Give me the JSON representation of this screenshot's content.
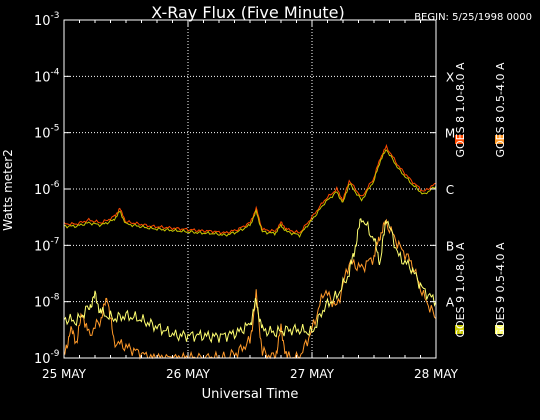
{
  "chart_data": {
    "type": "line",
    "title": "X-Ray Flux (Five Minute)",
    "begin_label": "BEGIN: 5/25/1998 0000",
    "xlabel": "Universal Time",
    "ylabel": "Watts meter2",
    "y_scale": "log",
    "ylim_exponents": [
      -9,
      -3
    ],
    "yticks": [
      {
        "exp": -9,
        "label": "10",
        "sup": "-9"
      },
      {
        "exp": -8,
        "label": "10",
        "sup": "-8"
      },
      {
        "exp": -7,
        "label": "10",
        "sup": "-7"
      },
      {
        "exp": -6,
        "label": "10",
        "sup": "-6"
      },
      {
        "exp": -5,
        "label": "10",
        "sup": "-5"
      },
      {
        "exp": -4,
        "label": "10",
        "sup": "-4"
      },
      {
        "exp": -3,
        "label": "10",
        "sup": "-3"
      }
    ],
    "xlim_days": [
      25,
      28
    ],
    "xticks": [
      {
        "day": 25,
        "label": "25 MAY"
      },
      {
        "day": 26,
        "label": "26 MAY"
      },
      {
        "day": 27,
        "label": "27 MAY"
      },
      {
        "day": 28,
        "label": "28 MAY"
      }
    ],
    "flare_classes": [
      {
        "label": "A",
        "exp": -8
      },
      {
        "label": "B",
        "exp": -7
      },
      {
        "label": "C",
        "exp": -6
      },
      {
        "label": "M",
        "exp": -5
      },
      {
        "label": "X",
        "exp": -4
      }
    ],
    "grid": true,
    "legend": [
      {
        "name": "GOES 8 1.0-8.0 A",
        "color": "#ff4a00"
      },
      {
        "name": "GOES 8 0.5-4.0 A",
        "color": "#ff9a2a"
      },
      {
        "name": "GOES 9 1.0-8.0 A",
        "color": "#c8c800"
      },
      {
        "name": "GOES 9 0.5-4.0 A",
        "color": "#ffff70"
      }
    ],
    "series": [
      {
        "name": "GOES 8 1.0-8.0 A",
        "color": "#ff4a00",
        "x": [
          25.0,
          25.1,
          25.2,
          25.3,
          25.4,
          25.45,
          25.5,
          25.6,
          25.7,
          25.8,
          25.9,
          26.0,
          26.1,
          26.2,
          26.3,
          26.4,
          26.5,
          26.55,
          26.6,
          26.7,
          26.75,
          26.8,
          26.9,
          27.0,
          27.1,
          27.2,
          27.25,
          27.3,
          27.4,
          27.5,
          27.55,
          27.6,
          27.7,
          27.8,
          27.9,
          28.0
        ],
        "exp": [
          -6.62,
          -6.62,
          -6.55,
          -6.6,
          -6.5,
          -6.35,
          -6.58,
          -6.62,
          -6.66,
          -6.68,
          -6.7,
          -6.72,
          -6.74,
          -6.75,
          -6.78,
          -6.72,
          -6.6,
          -6.35,
          -6.72,
          -6.75,
          -6.6,
          -6.72,
          -6.78,
          -6.5,
          -6.2,
          -6.0,
          -6.2,
          -5.85,
          -6.15,
          -5.8,
          -5.45,
          -5.25,
          -5.6,
          -5.85,
          -6.05,
          -5.9
        ]
      },
      {
        "name": "GOES 8 0.5-4.0 A",
        "color": "#ff9a2a",
        "x": [
          25.0,
          25.05,
          25.1,
          25.15,
          25.2,
          25.3,
          25.35,
          25.4,
          25.5,
          25.6,
          25.7,
          25.8,
          25.9,
          26.0,
          26.1,
          26.2,
          26.3,
          26.4,
          26.5,
          26.55,
          26.6,
          26.7,
          26.75,
          26.8,
          26.9,
          27.0,
          27.1,
          27.2,
          27.3,
          27.4,
          27.5,
          27.55,
          27.6,
          27.7,
          27.8,
          27.9,
          28.0
        ],
        "exp": [
          -9.0,
          -8.5,
          -8.7,
          -8.2,
          -8.6,
          -8.3,
          -7.9,
          -8.7,
          -8.8,
          -8.9,
          -9.0,
          -9.0,
          -9.0,
          -9.0,
          -9.0,
          -9.0,
          -9.0,
          -8.9,
          -8.7,
          -7.9,
          -8.9,
          -9.0,
          -8.5,
          -9.0,
          -9.0,
          -8.5,
          -7.8,
          -8.1,
          -7.3,
          -7.4,
          -7.2,
          -6.8,
          -6.6,
          -7.0,
          -7.3,
          -7.9,
          -8.3
        ]
      },
      {
        "name": "GOES 9 1.0-8.0 A",
        "color": "#c8c800",
        "x": [
          25.0,
          25.1,
          25.2,
          25.3,
          25.4,
          25.45,
          25.5,
          25.6,
          25.7,
          25.8,
          25.9,
          26.0,
          26.1,
          26.2,
          26.3,
          26.4,
          26.5,
          26.55,
          26.6,
          26.7,
          26.75,
          26.8,
          26.9,
          27.0,
          27.1,
          27.2,
          27.25,
          27.3,
          27.4,
          27.5,
          27.55,
          27.6,
          27.7,
          27.8,
          27.9,
          28.0
        ],
        "exp": [
          -6.66,
          -6.66,
          -6.6,
          -6.64,
          -6.55,
          -6.4,
          -6.62,
          -6.66,
          -6.7,
          -6.72,
          -6.74,
          -6.76,
          -6.78,
          -6.79,
          -6.82,
          -6.76,
          -6.64,
          -6.4,
          -6.76,
          -6.79,
          -6.65,
          -6.76,
          -6.82,
          -6.55,
          -6.25,
          -6.05,
          -6.25,
          -5.9,
          -6.2,
          -5.85,
          -5.5,
          -5.3,
          -5.65,
          -5.9,
          -6.1,
          -5.95
        ]
      },
      {
        "name": "GOES 9 0.5-4.0 A",
        "color": "#ffff70",
        "x": [
          25.0,
          25.1,
          25.2,
          25.25,
          25.3,
          25.4,
          25.5,
          25.6,
          25.7,
          25.8,
          25.9,
          26.0,
          26.1,
          26.2,
          26.3,
          26.4,
          26.5,
          26.55,
          26.6,
          26.7,
          26.8,
          26.9,
          27.0,
          27.1,
          27.2,
          27.3,
          27.35,
          27.4,
          27.5,
          27.55,
          27.6,
          27.7,
          27.8,
          27.9,
          28.0
        ],
        "exp": [
          -8.3,
          -8.35,
          -8.1,
          -7.9,
          -8.2,
          -8.3,
          -8.25,
          -8.3,
          -8.4,
          -8.5,
          -8.6,
          -8.6,
          -8.6,
          -8.62,
          -8.6,
          -8.55,
          -8.4,
          -8.0,
          -8.5,
          -8.55,
          -8.5,
          -8.5,
          -8.55,
          -8.1,
          -7.9,
          -7.5,
          -7.0,
          -6.5,
          -6.9,
          -7.3,
          -6.5,
          -7.2,
          -7.4,
          -7.8,
          -8.0
        ]
      }
    ]
  }
}
